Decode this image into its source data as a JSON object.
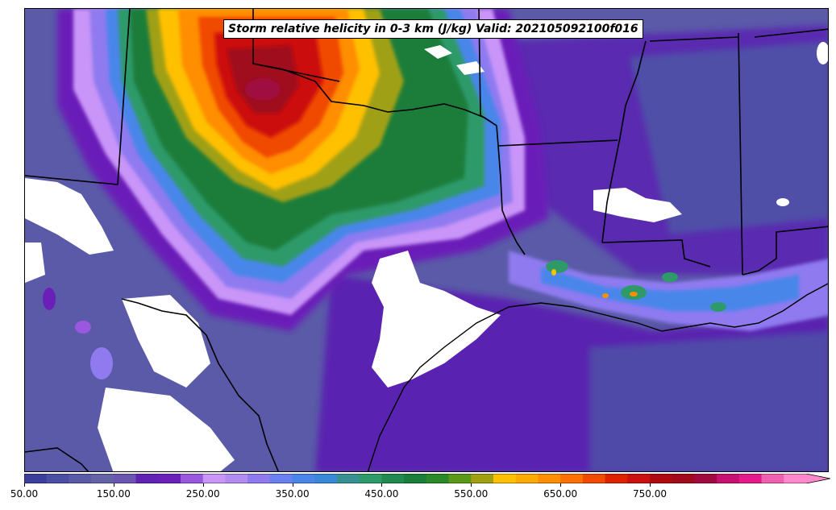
{
  "title": "Storm relative helicity in 0-3 km (J/kg) Valid: 202105092100f016",
  "colorbar": {
    "min": 50,
    "max": 925,
    "step": 25,
    "extend": "max",
    "colors": [
      "#3b3f9b",
      "#4c4ea4",
      "#5a5aa8",
      "#6463a8",
      "#6a55b0",
      "#5f22b3",
      "#6a1fb8",
      "#9a58e0",
      "#c995f8",
      "#b38cf2",
      "#8f7af0",
      "#6a80f0",
      "#4a86ea",
      "#3a88d8",
      "#389090",
      "#2e9a6a",
      "#228a50",
      "#1a7d3a",
      "#2a8a2a",
      "#5a9a18",
      "#a0a012",
      "#ffc000",
      "#ffaa00",
      "#ff8e00",
      "#ff7000",
      "#f04a00",
      "#dd2200",
      "#cc1010",
      "#b00a10",
      "#a00a1a",
      "#a00a40",
      "#c81070",
      "#e61a8a",
      "#f060b0",
      "#ff88cc"
    ],
    "tick_labels": [
      "50.00",
      "150.00",
      "250.00",
      "350.00",
      "450.00",
      "550.00",
      "650.00",
      "750.00"
    ],
    "tick_values": [
      50,
      150,
      250,
      350,
      450,
      550,
      650,
      750
    ]
  }
}
